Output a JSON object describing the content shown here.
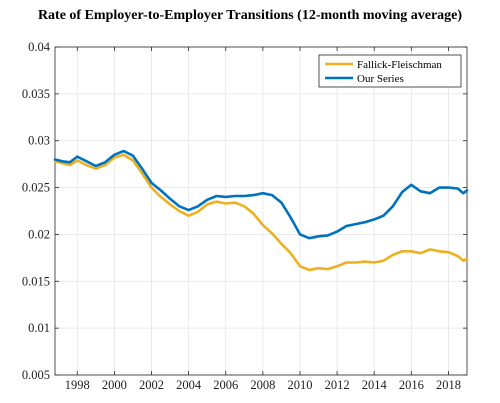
{
  "chart_data": {
    "type": "line",
    "title": "Rate of Employer-to-Employer Transitions (12-month moving average)",
    "xlabel": "",
    "ylabel": "",
    "xlim": [
      1996.8,
      2019.0
    ],
    "ylim": [
      0.005,
      0.04
    ],
    "grid": true,
    "legend_position": "top-right",
    "x_ticks": [
      1998,
      2000,
      2002,
      2004,
      2006,
      2008,
      2010,
      2012,
      2014,
      2016,
      2018
    ],
    "x_tick_labels": [
      "1998",
      "2000",
      "2002",
      "2004",
      "2006",
      "2008",
      "2010",
      "2012",
      "2014",
      "2016",
      "2018"
    ],
    "y_ticks": [
      0.005,
      0.01,
      0.015,
      0.02,
      0.025,
      0.03,
      0.035,
      0.04
    ],
    "y_tick_labels": [
      "0.005",
      "0.01",
      "0.015",
      "0.02",
      "0.025",
      "0.03",
      "0.035",
      "0.04"
    ],
    "series": [
      {
        "name": "Fallick-Fleischman",
        "color": "#EDB120",
        "x": [
          1996.8,
          1997.2,
          1997.6,
          1998.0,
          1998.5,
          1999.0,
          1999.5,
          2000.0,
          2000.5,
          2001.0,
          2001.5,
          2002.0,
          2002.5,
          2003.0,
          2003.5,
          2004.0,
          2004.5,
          2005.0,
          2005.5,
          2006.0,
          2006.5,
          2007.0,
          2007.5,
          2008.0,
          2008.5,
          2009.0,
          2009.5,
          2010.0,
          2010.5,
          2011.0,
          2011.5,
          2012.0,
          2012.5,
          2013.0,
          2013.5,
          2014.0,
          2014.5,
          2015.0,
          2015.5,
          2016.0,
          2016.5,
          2017.0,
          2017.5,
          2018.0,
          2018.5,
          2018.8,
          2019.0
        ],
        "values": [
          0.0278,
          0.0276,
          0.0274,
          0.0279,
          0.0274,
          0.027,
          0.0274,
          0.0282,
          0.0285,
          0.0279,
          0.0265,
          0.025,
          0.024,
          0.0232,
          0.0225,
          0.022,
          0.0224,
          0.0232,
          0.0235,
          0.0233,
          0.0234,
          0.023,
          0.0222,
          0.021,
          0.0201,
          0.019,
          0.018,
          0.0166,
          0.0162,
          0.0164,
          0.0163,
          0.0166,
          0.017,
          0.017,
          0.0171,
          0.017,
          0.0172,
          0.0178,
          0.0182,
          0.0182,
          0.018,
          0.0184,
          0.0182,
          0.0181,
          0.0177,
          0.0172,
          0.0174
        ]
      },
      {
        "name": "Our Series",
        "color": "#0072BD",
        "x": [
          1996.8,
          1997.2,
          1997.6,
          1998.0,
          1998.5,
          1999.0,
          1999.5,
          2000.0,
          2000.5,
          2001.0,
          2001.5,
          2002.0,
          2002.5,
          2003.0,
          2003.5,
          2004.0,
          2004.5,
          2005.0,
          2005.5,
          2006.0,
          2006.5,
          2007.0,
          2007.5,
          2008.0,
          2008.5,
          2009.0,
          2009.5,
          2010.0,
          2010.5,
          2011.0,
          2011.5,
          2012.0,
          2012.5,
          2013.0,
          2013.5,
          2014.0,
          2014.5,
          2015.0,
          2015.5,
          2016.0,
          2016.5,
          2017.0,
          2017.5,
          2018.0,
          2018.5,
          2018.8,
          2019.0
        ],
        "values": [
          0.028,
          0.0278,
          0.0277,
          0.0283,
          0.0278,
          0.0273,
          0.0277,
          0.0285,
          0.0289,
          0.0284,
          0.027,
          0.0255,
          0.0247,
          0.0238,
          0.023,
          0.0226,
          0.023,
          0.0237,
          0.0241,
          0.024,
          0.0241,
          0.0241,
          0.0242,
          0.0244,
          0.0242,
          0.0234,
          0.0218,
          0.02,
          0.0196,
          0.0198,
          0.0199,
          0.0203,
          0.0209,
          0.0211,
          0.0213,
          0.0216,
          0.022,
          0.023,
          0.0245,
          0.0253,
          0.0246,
          0.0244,
          0.025,
          0.025,
          0.0249,
          0.0244,
          0.0247
        ]
      }
    ]
  }
}
